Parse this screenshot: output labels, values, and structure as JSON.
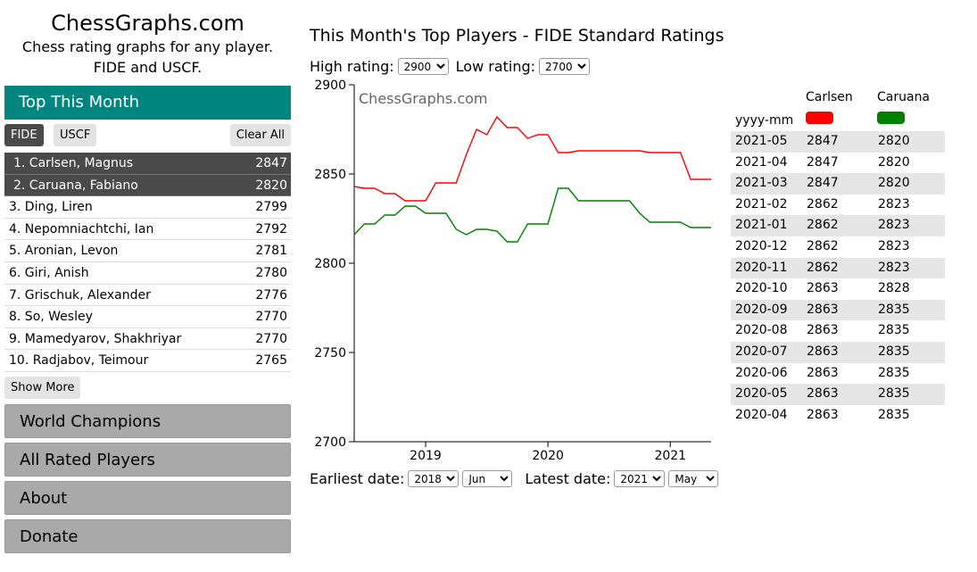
{
  "site": {
    "title": "ChessGraphs.com",
    "tagline_line1": "Chess rating graphs for any player.",
    "tagline_line2": "FIDE and USCF."
  },
  "sidebar": {
    "top_header": "Top This Month",
    "fide_label": "FIDE",
    "uscf_label": "USCF",
    "clear_label": "Clear All",
    "players": [
      {
        "name": "1. Carlsen, Magnus",
        "rating": "2847",
        "selected": true
      },
      {
        "name": "2. Caruana, Fabiano",
        "rating": "2820",
        "selected": true
      },
      {
        "name": "3. Ding, Liren",
        "rating": "2799",
        "selected": false
      },
      {
        "name": "4. Nepomniachtchi, Ian",
        "rating": "2792",
        "selected": false
      },
      {
        "name": "5. Aronian, Levon",
        "rating": "2781",
        "selected": false
      },
      {
        "name": "6. Giri, Anish",
        "rating": "2780",
        "selected": false
      },
      {
        "name": "7. Grischuk, Alexander",
        "rating": "2776",
        "selected": false
      },
      {
        "name": "8. So, Wesley",
        "rating": "2770",
        "selected": false
      },
      {
        "name": "9. Mamedyarov, Shakhriyar",
        "rating": "2770",
        "selected": false
      },
      {
        "name": "10. Radjabov, Teimour",
        "rating": "2765",
        "selected": false
      }
    ],
    "show_more_label": "Show More",
    "nav": [
      "World Champions",
      "All Rated Players",
      "About",
      "Donate"
    ]
  },
  "main": {
    "title": "This Month's Top Players - FIDE Standard Ratings",
    "high_label": "High rating:",
    "high_value": "2900",
    "low_label": "Low rating:",
    "low_value": "2700",
    "earliest_label": "Earliest date:",
    "earliest_year": "2018",
    "earliest_month": "Jun",
    "latest_label": "Latest date:",
    "latest_year": "2021",
    "latest_month": "May"
  },
  "chart_data": {
    "type": "line",
    "watermark": "ChessGraphs.com",
    "ylim": [
      2700,
      2900
    ],
    "y_ticks": [
      2700,
      2750,
      2800,
      2850,
      2900
    ],
    "x_range": [
      "2018-06",
      "2021-05"
    ],
    "x_ticks": [
      "2019",
      "2020",
      "2021"
    ],
    "grid": false,
    "series": [
      {
        "name": "Carlsen",
        "color": "#ff0000",
        "x": [
          "2018-06",
          "2018-07",
          "2018-08",
          "2018-09",
          "2018-10",
          "2018-11",
          "2018-12",
          "2019-01",
          "2019-02",
          "2019-03",
          "2019-04",
          "2019-05",
          "2019-06",
          "2019-07",
          "2019-08",
          "2019-09",
          "2019-10",
          "2019-11",
          "2019-12",
          "2020-01",
          "2020-02",
          "2020-03",
          "2020-04",
          "2020-05",
          "2020-06",
          "2020-07",
          "2020-08",
          "2020-09",
          "2020-10",
          "2020-11",
          "2020-12",
          "2021-01",
          "2021-02",
          "2021-03",
          "2021-04",
          "2021-05"
        ],
        "values": [
          2843,
          2842,
          2842,
          2839,
          2839,
          2835,
          2835,
          2835,
          2845,
          2845,
          2845,
          2861,
          2875,
          2872,
          2882,
          2876,
          2876,
          2870,
          2872,
          2872,
          2862,
          2862,
          2863,
          2863,
          2863,
          2863,
          2863,
          2863,
          2863,
          2862,
          2862,
          2862,
          2862,
          2847,
          2847,
          2847
        ]
      },
      {
        "name": "Caruana",
        "color": "#008000",
        "x": [
          "2018-06",
          "2018-07",
          "2018-08",
          "2018-09",
          "2018-10",
          "2018-11",
          "2018-12",
          "2019-01",
          "2019-02",
          "2019-03",
          "2019-04",
          "2019-05",
          "2019-06",
          "2019-07",
          "2019-08",
          "2019-09",
          "2019-10",
          "2019-11",
          "2019-12",
          "2020-01",
          "2020-02",
          "2020-03",
          "2020-04",
          "2020-05",
          "2020-06",
          "2020-07",
          "2020-08",
          "2020-09",
          "2020-10",
          "2020-11",
          "2020-12",
          "2021-01",
          "2021-02",
          "2021-03",
          "2021-04",
          "2021-05"
        ],
        "values": [
          2816,
          2822,
          2822,
          2827,
          2827,
          2832,
          2832,
          2828,
          2828,
          2828,
          2819,
          2816,
          2819,
          2819,
          2818,
          2812,
          2812,
          2822,
          2822,
          2822,
          2842,
          2842,
          2835,
          2835,
          2835,
          2835,
          2835,
          2835,
          2828,
          2823,
          2823,
          2823,
          2823,
          2820,
          2820,
          2820
        ]
      }
    ]
  },
  "table": {
    "date_header": "yyyy-mm",
    "col1_name": "Carlsen",
    "col2_name": "Caruana",
    "col1_color": "#ff0000",
    "col2_color": "#008000",
    "rows": [
      [
        "2021-05",
        "2847",
        "2820"
      ],
      [
        "2021-04",
        "2847",
        "2820"
      ],
      [
        "2021-03",
        "2847",
        "2820"
      ],
      [
        "2021-02",
        "2862",
        "2823"
      ],
      [
        "2021-01",
        "2862",
        "2823"
      ],
      [
        "2020-12",
        "2862",
        "2823"
      ],
      [
        "2020-11",
        "2862",
        "2823"
      ],
      [
        "2020-10",
        "2863",
        "2828"
      ],
      [
        "2020-09",
        "2863",
        "2835"
      ],
      [
        "2020-08",
        "2863",
        "2835"
      ],
      [
        "2020-07",
        "2863",
        "2835"
      ],
      [
        "2020-06",
        "2863",
        "2835"
      ],
      [
        "2020-05",
        "2863",
        "2835"
      ],
      [
        "2020-04",
        "2863",
        "2835"
      ]
    ]
  }
}
